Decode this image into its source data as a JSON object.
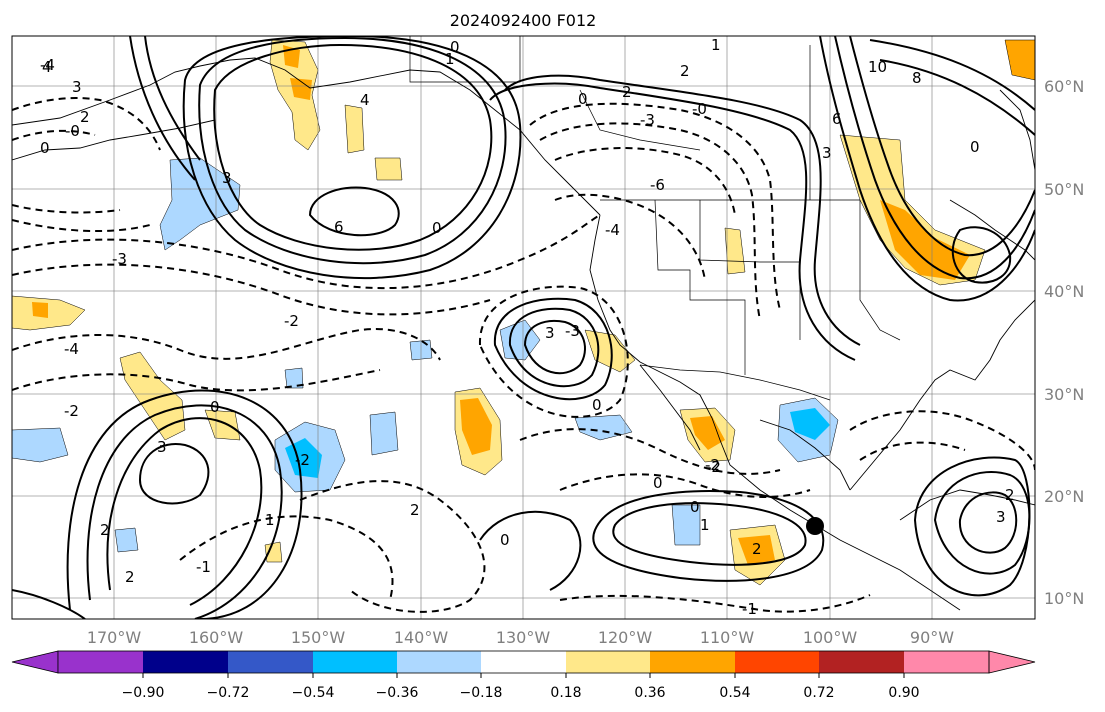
{
  "title": "2024092400 F012",
  "map": {
    "lon_labels": [
      "170°W",
      "160°W",
      "150°W",
      "140°W",
      "130°W",
      "120°W",
      "110°W",
      "100°W",
      "90°W"
    ],
    "lat_labels": [
      "60°N",
      "50°N",
      "40°N",
      "30°N",
      "20°N",
      "10°N"
    ],
    "marker": "storm-location-dot",
    "contour_labels": [
      {
        "text": "4",
        "id": "c1"
      },
      {
        "text": "3",
        "id": "c2"
      },
      {
        "text": "2",
        "id": "c3"
      },
      {
        "text": "0",
        "id": "c4"
      },
      {
        "text": "0",
        "id": "c5"
      },
      {
        "text": "3",
        "id": "c6"
      },
      {
        "text": "4",
        "id": "c7"
      },
      {
        "text": "6",
        "id": "c8"
      },
      {
        "text": "3",
        "id": "c9"
      },
      {
        "text": "-3",
        "id": "c10"
      },
      {
        "text": "-4",
        "id": "c11"
      },
      {
        "text": "-2",
        "id": "c12"
      },
      {
        "text": "-2",
        "id": "c13"
      },
      {
        "text": "0",
        "id": "c14"
      },
      {
        "text": "3",
        "id": "c15"
      },
      {
        "text": "0",
        "id": "c16"
      },
      {
        "text": "2",
        "id": "c17"
      },
      {
        "text": "1",
        "id": "c18"
      },
      {
        "text": "2",
        "id": "c19"
      },
      {
        "text": "0",
        "id": "c20"
      },
      {
        "text": "-3",
        "id": "c21"
      },
      {
        "text": "-4",
        "id": "c22"
      },
      {
        "text": "-6",
        "id": "c23"
      },
      {
        "text": "-3",
        "id": "c24"
      },
      {
        "text": "0",
        "id": "c25"
      },
      {
        "text": "-0",
        "id": "c26"
      },
      {
        "text": "-2",
        "id": "c27"
      },
      {
        "text": "0",
        "id": "c28"
      },
      {
        "text": "1",
        "id": "c29"
      },
      {
        "text": "2",
        "id": "c30"
      },
      {
        "text": "-1",
        "id": "c31"
      },
      {
        "text": "0",
        "id": "c32"
      },
      {
        "text": "1",
        "id": "c33"
      },
      {
        "text": "2",
        "id": "c34"
      },
      {
        "text": "10",
        "id": "c35"
      },
      {
        "text": "8",
        "id": "c36"
      },
      {
        "text": "6",
        "id": "c37"
      },
      {
        "text": "3",
        "id": "c38"
      },
      {
        "text": "0",
        "id": "c39"
      },
      {
        "text": "3",
        "id": "c40"
      },
      {
        "text": "2",
        "id": "c41"
      },
      {
        "text": "-1",
        "id": "c42"
      },
      {
        "text": "2",
        "id": "c43"
      },
      {
        "text": "-2",
        "id": "c44"
      },
      {
        "text": "0",
        "id": "c45"
      },
      {
        "text": "2",
        "id": "c46"
      },
      {
        "text": "1",
        "id": "c47"
      },
      {
        "text": "-2",
        "id": "c48"
      },
      {
        "text": "-0",
        "id": "c49"
      },
      {
        "text": "-4",
        "id": "c50"
      }
    ]
  },
  "colorbar": {
    "tick_labels": [
      "−0.90",
      "−0.72",
      "−0.54",
      "−0.36",
      "−0.18",
      "0.18",
      "0.36",
      "0.54",
      "0.72",
      "0.90"
    ],
    "colors": [
      "#9932cc",
      "#00008b",
      "#3458c8",
      "#00bfff",
      "#add8ff",
      "#ffffff",
      "#ffe88a",
      "#ffa500",
      "#ff4500",
      "#b22222",
      "#ff88aa"
    ]
  }
}
